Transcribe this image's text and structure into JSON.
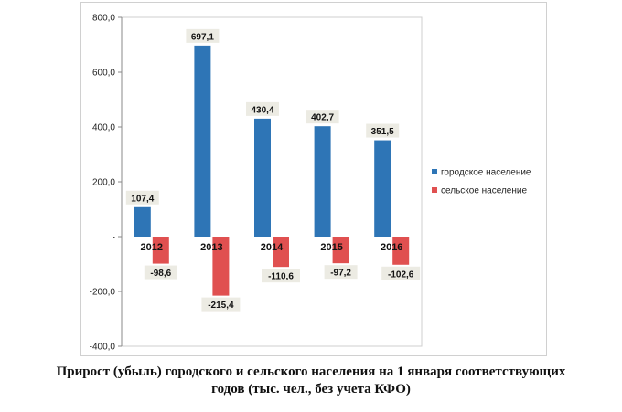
{
  "chart_data": {
    "type": "bar",
    "categories": [
      "2012",
      "2013",
      "2014",
      "2015",
      "2016"
    ],
    "series": [
      {
        "name": "городское население",
        "values": [
          107.4,
          697.1,
          430.4,
          402.7,
          351.5
        ],
        "labels": [
          "107,4",
          "697,1",
          "430,4",
          "402,7",
          "351,5"
        ],
        "color": "#2e75b6"
      },
      {
        "name": "сельское население",
        "values": [
          -98.6,
          -215.4,
          -110.6,
          -97.2,
          -102.6
        ],
        "labels": [
          "-98,6",
          "-215,4",
          "-110,6",
          "-97,2",
          "-102,6"
        ],
        "color": "#e05050"
      }
    ],
    "yticks": [
      "800,0",
      "600,0",
      "400,0",
      "200,0",
      "-",
      "-200,0",
      "-400,0"
    ],
    "ylim": [
      -400,
      800
    ],
    "grid": false,
    "legend": "right",
    "title_line1": "Прирост (убыль) городского и сельского населения на 1 января соответствующих",
    "title_line2": "годов (тыс. чел., без учета КФО)"
  }
}
